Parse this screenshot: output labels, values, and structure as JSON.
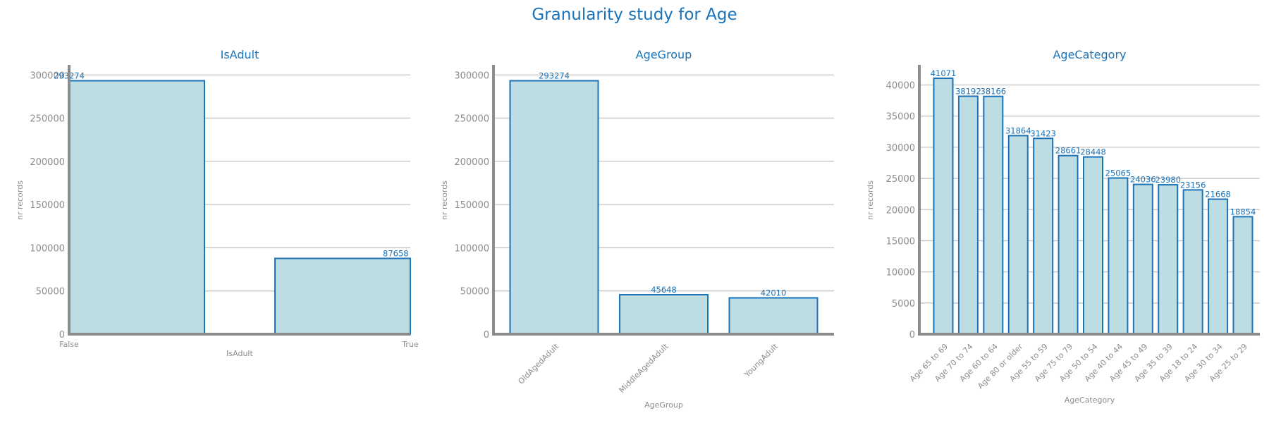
{
  "title": "Granularity study for Age",
  "colors": {
    "bar_fill": "#bedde2",
    "bar_edge": "#1a73b8",
    "title": "#1a73b8",
    "grid": "#c4c4c4",
    "axis": "#8c8c8c"
  },
  "chart_data": [
    {
      "type": "bar",
      "title": "IsAdult",
      "xlabel": "IsAdult",
      "ylabel": "nr records",
      "categories": [
        "False",
        "True"
      ],
      "values": [
        293274,
        87658
      ],
      "ylim": [
        0,
        310000
      ],
      "yticks": [
        0,
        50000,
        100000,
        150000,
        200000,
        250000,
        300000
      ],
      "grid": true,
      "x_labels_rotated": false
    },
    {
      "type": "bar",
      "title": "AgeGroup",
      "xlabel": "AgeGroup",
      "ylabel": "nr records",
      "categories": [
        "OldAgedAdult",
        "MiddleAgedAdult",
        "YoungAdult"
      ],
      "values": [
        293274,
        45648,
        42010
      ],
      "ylim": [
        0,
        310000
      ],
      "yticks": [
        0,
        50000,
        100000,
        150000,
        200000,
        250000,
        300000
      ],
      "grid": true,
      "x_labels_rotated": true
    },
    {
      "type": "bar",
      "title": "AgeCategory",
      "xlabel": "AgeCategory",
      "ylabel": "nr records",
      "categories": [
        "Age 65 to 69",
        "Age 70 to 74",
        "Age 60 to 64",
        "Age 80 or older",
        "Age 55 to 59",
        "Age 75 to 79",
        "Age 50 to 54",
        "Age 40 to 44",
        "Age 45 to 49",
        "Age 35 to 39",
        "Age 18 to 24",
        "Age 30 to 34",
        "Age 25 to 29"
      ],
      "values": [
        41071,
        38192,
        38166,
        31864,
        31423,
        28661,
        28448,
        25065,
        24036,
        23980,
        23156,
        21668,
        18854
      ],
      "ylim": [
        0,
        43000
      ],
      "yticks": [
        0,
        5000,
        10000,
        15000,
        20000,
        25000,
        30000,
        35000,
        40000
      ],
      "grid": true,
      "x_labels_rotated": true
    }
  ]
}
